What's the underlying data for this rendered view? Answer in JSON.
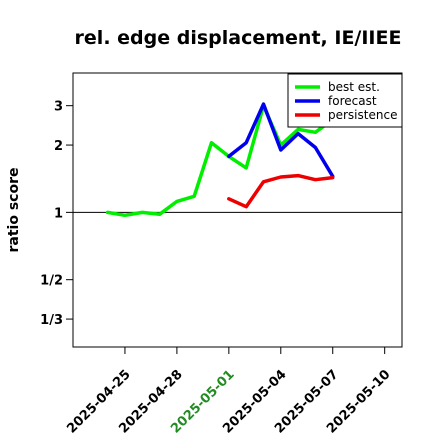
{
  "chart_data": {
    "type": "line",
    "title": "rel. edge displacement, IE/IIEE",
    "xlabel": "",
    "ylabel": "ratio score",
    "y_scale": "log",
    "y_ticks": [
      {
        "value": 0.3333,
        "label": "1/3"
      },
      {
        "value": 0.5,
        "label": "1/2"
      },
      {
        "value": 1,
        "label": "1"
      },
      {
        "value": 2,
        "label": "2"
      },
      {
        "value": 3,
        "label": "3"
      }
    ],
    "ylim": [
      0.25,
      4.2
    ],
    "xlim": [
      "2025-04-22",
      "2025-05-11"
    ],
    "x_ticks": [
      {
        "date": "2025-04-25",
        "color": "#000000"
      },
      {
        "date": "2025-04-28",
        "color": "#000000"
      },
      {
        "date": "2025-05-01",
        "color": "#228b22"
      },
      {
        "date": "2025-05-04",
        "color": "#000000"
      },
      {
        "date": "2025-05-07",
        "color": "#000000"
      },
      {
        "date": "2025-05-10",
        "color": "#000000"
      }
    ],
    "reference_line": 1,
    "legend_position": "top-right",
    "series": [
      {
        "name": "best est.",
        "color": "#00ee00",
        "x": [
          "2025-04-24",
          "2025-04-25",
          "2025-04-26",
          "2025-04-27",
          "2025-04-28",
          "2025-04-29",
          "2025-04-30",
          "2025-05-01",
          "2025-05-02",
          "2025-05-03",
          "2025-05-04",
          "2025-05-05",
          "2025-05-06",
          "2025-05-07"
        ],
        "y": [
          1.0,
          0.97,
          1.0,
          0.98,
          1.12,
          1.18,
          2.05,
          1.78,
          1.58,
          3.0,
          2.0,
          2.35,
          2.28,
          2.6
        ]
      },
      {
        "name": "forecast",
        "color": "#0000ee",
        "x": [
          "2025-05-01",
          "2025-05-02",
          "2025-05-03",
          "2025-05-04",
          "2025-05-05",
          "2025-05-06",
          "2025-05-07"
        ],
        "y": [
          1.78,
          2.05,
          3.05,
          1.9,
          2.25,
          1.95,
          1.45
        ]
      },
      {
        "name": "persistence",
        "color": "#ee0000",
        "x": [
          "2025-05-01",
          "2025-05-02",
          "2025-05-03",
          "2025-05-04",
          "2025-05-05",
          "2025-05-06",
          "2025-05-07"
        ],
        "y": [
          1.15,
          1.06,
          1.37,
          1.44,
          1.46,
          1.4,
          1.43
        ]
      }
    ]
  }
}
